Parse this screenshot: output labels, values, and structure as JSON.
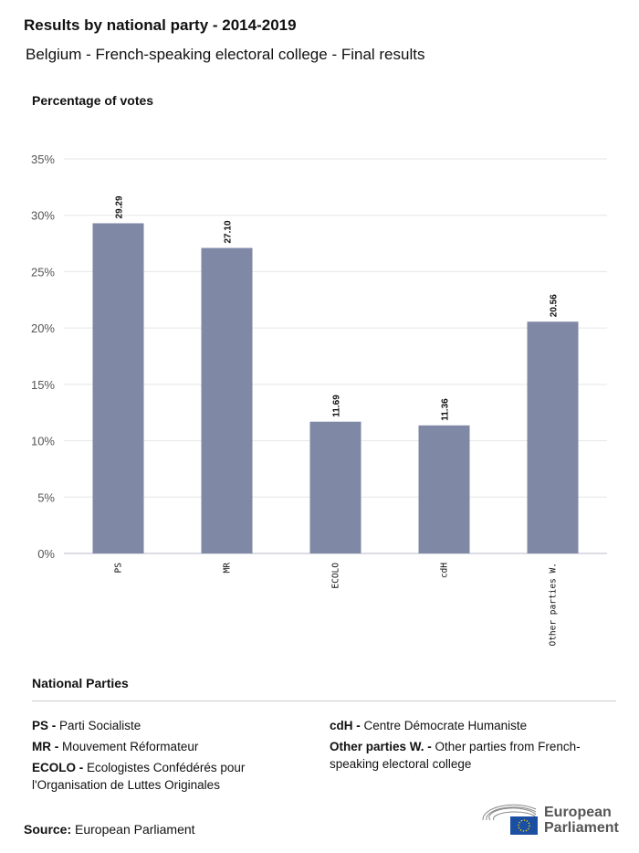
{
  "title": "Results by national party - 2014-2019",
  "subtitle": "Belgium - French-speaking electoral college - Final results",
  "chart_data": {
    "type": "bar",
    "ylabel": "Percentage of votes",
    "categories": [
      "PS",
      "MR",
      "ECOLO",
      "cdH",
      "Other parties W."
    ],
    "values": [
      29.29,
      27.1,
      11.69,
      11.36,
      20.56
    ],
    "value_labels": [
      "29.29",
      "27.10",
      "11.69",
      "11.36",
      "20.56"
    ],
    "ylim": [
      0,
      35
    ],
    "yticks": [
      "0%",
      "5%",
      "10%",
      "15%",
      "20%",
      "25%",
      "30%",
      "35%"
    ],
    "grid": true,
    "bar_color": "#7f88a5"
  },
  "legend": {
    "title": "National Parties",
    "items": [
      {
        "abbr": "PS -",
        "name": "Parti Socialiste"
      },
      {
        "abbr": "MR -",
        "name": "Mouvement Réformateur"
      },
      {
        "abbr": "ECOLO -",
        "name": "Ecologistes Confédérés pour l'Organisation de Luttes Originales"
      },
      {
        "abbr": "cdH -",
        "name": "Centre Démocrate Humaniste"
      },
      {
        "abbr": "Other parties W. -",
        "name": "Other parties from French-speaking electoral college"
      }
    ]
  },
  "source": {
    "label": "Source:",
    "value": "European Parliament"
  },
  "logo": {
    "text1": "European",
    "text2": "Parliament",
    "flag_color": "#1c4fa1"
  }
}
